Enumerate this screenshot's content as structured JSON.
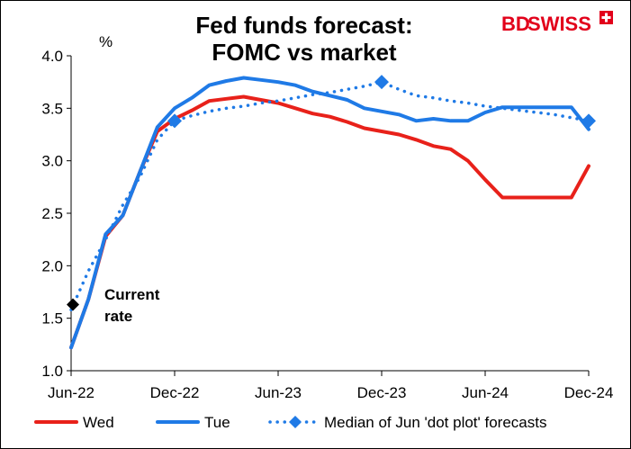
{
  "brand": {
    "name_bd": "BD",
    "name_swiss": "SWISS",
    "red": "#e2001a",
    "cross_icon": "swiss-cross-icon"
  },
  "chart_data": {
    "type": "line",
    "title": [
      "Fed funds forecast:",
      "FOMC vs market"
    ],
    "ylabel": "%",
    "ylim": [
      1.0,
      4.0
    ],
    "yticks": [
      "1.0",
      "1.5",
      "2.0",
      "2.5",
      "3.0",
      "3.5",
      "4.0"
    ],
    "xlim": [
      "2022-06",
      "2024-12"
    ],
    "xticks": [
      "Jun-22",
      "Dec-22",
      "Jun-23",
      "Dec-23",
      "Jun-24",
      "Dec-24"
    ],
    "grid": false,
    "legend_position": "bottom",
    "series": [
      {
        "name": "Wed",
        "color": "#e8211a",
        "style": "solid",
        "points": [
          [
            "2022-06",
            1.22
          ],
          [
            "2022-07",
            1.68
          ],
          [
            "2022-08",
            2.28
          ],
          [
            "2022-09",
            2.48
          ],
          [
            "2022-10",
            2.9
          ],
          [
            "2022-11",
            3.28
          ],
          [
            "2022-12",
            3.4
          ],
          [
            "2023-01",
            3.48
          ],
          [
            "2023-02",
            3.57
          ],
          [
            "2023-03",
            3.59
          ],
          [
            "2023-04",
            3.61
          ],
          [
            "2023-05",
            3.58
          ],
          [
            "2023-06",
            3.55
          ],
          [
            "2023-07",
            3.5
          ],
          [
            "2023-08",
            3.45
          ],
          [
            "2023-09",
            3.42
          ],
          [
            "2023-10",
            3.37
          ],
          [
            "2023-11",
            3.31
          ],
          [
            "2023-12",
            3.28
          ],
          [
            "2024-01",
            3.25
          ],
          [
            "2024-02",
            3.2
          ],
          [
            "2024-03",
            3.14
          ],
          [
            "2024-04",
            3.11
          ],
          [
            "2024-05",
            3.0
          ],
          [
            "2024-06",
            2.82
          ],
          [
            "2024-07",
            2.65
          ],
          [
            "2024-08",
            2.65
          ],
          [
            "2024-09",
            2.65
          ],
          [
            "2024-10",
            2.65
          ],
          [
            "2024-11",
            2.65
          ],
          [
            "2024-12",
            2.95
          ]
        ]
      },
      {
        "name": "Tue",
        "color": "#1f7ae6",
        "style": "solid",
        "points": [
          [
            "2022-06",
            1.22
          ],
          [
            "2022-07",
            1.68
          ],
          [
            "2022-08",
            2.3
          ],
          [
            "2022-09",
            2.48
          ],
          [
            "2022-10",
            2.9
          ],
          [
            "2022-11",
            3.32
          ],
          [
            "2022-12",
            3.5
          ],
          [
            "2023-01",
            3.6
          ],
          [
            "2023-02",
            3.72
          ],
          [
            "2023-03",
            3.76
          ],
          [
            "2023-04",
            3.79
          ],
          [
            "2023-05",
            3.77
          ],
          [
            "2023-06",
            3.75
          ],
          [
            "2023-07",
            3.72
          ],
          [
            "2023-08",
            3.66
          ],
          [
            "2023-09",
            3.62
          ],
          [
            "2023-10",
            3.58
          ],
          [
            "2023-11",
            3.5
          ],
          [
            "2023-12",
            3.47
          ],
          [
            "2024-01",
            3.44
          ],
          [
            "2024-02",
            3.38
          ],
          [
            "2024-03",
            3.4
          ],
          [
            "2024-04",
            3.38
          ],
          [
            "2024-05",
            3.38
          ],
          [
            "2024-06",
            3.46
          ],
          [
            "2024-07",
            3.51
          ],
          [
            "2024-08",
            3.51
          ],
          [
            "2024-09",
            3.51
          ],
          [
            "2024-10",
            3.51
          ],
          [
            "2024-11",
            3.51
          ],
          [
            "2024-12",
            3.3
          ]
        ]
      },
      {
        "name": "Median of Jun 'dot plot' forecasts",
        "color": "#1f7ae6",
        "style": "dotted",
        "marker": "diamond",
        "markers_at": [
          "2022-12",
          "2023-12",
          "2024-12"
        ],
        "points": [
          [
            "2022-06",
            1.58
          ],
          [
            "2022-07",
            1.95
          ],
          [
            "2022-08",
            2.25
          ],
          [
            "2022-09",
            2.58
          ],
          [
            "2022-10",
            2.85
          ],
          [
            "2022-11",
            3.2
          ],
          [
            "2022-12",
            3.38
          ],
          [
            "2023-01",
            3.43
          ],
          [
            "2023-02",
            3.47
          ],
          [
            "2023-03",
            3.5
          ],
          [
            "2023-04",
            3.52
          ],
          [
            "2023-05",
            3.55
          ],
          [
            "2023-06",
            3.57
          ],
          [
            "2023-07",
            3.6
          ],
          [
            "2023-08",
            3.63
          ],
          [
            "2023-09",
            3.65
          ],
          [
            "2023-10",
            3.68
          ],
          [
            "2023-11",
            3.71
          ],
          [
            "2023-12",
            3.75
          ],
          [
            "2024-01",
            3.68
          ],
          [
            "2024-02",
            3.62
          ],
          [
            "2024-03",
            3.6
          ],
          [
            "2024-04",
            3.57
          ],
          [
            "2024-05",
            3.55
          ],
          [
            "2024-06",
            3.52
          ],
          [
            "2024-07",
            3.5
          ],
          [
            "2024-08",
            3.48
          ],
          [
            "2024-09",
            3.46
          ],
          [
            "2024-10",
            3.44
          ],
          [
            "2024-11",
            3.41
          ],
          [
            "2024-12",
            3.38
          ]
        ]
      }
    ],
    "annotations": [
      {
        "lines": [
          "Current",
          "rate"
        ],
        "x": "2022-06",
        "y": 1.63,
        "marker": "diamond",
        "color": "#000000"
      }
    ]
  }
}
